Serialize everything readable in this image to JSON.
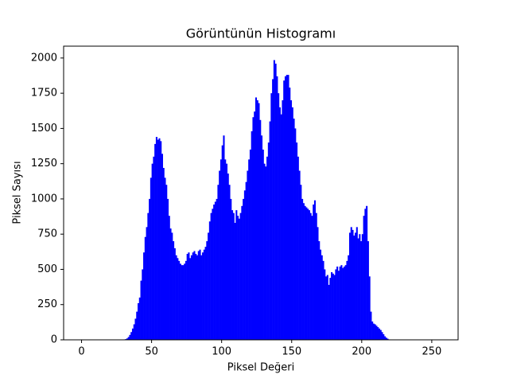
{
  "chart_data": {
    "type": "histogram",
    "title": "Görüntünün Histogramı",
    "x_label": "Piksel Değeri",
    "y_label": "Piksel Sayısı",
    "color": "#0000ff",
    "bins": [
      0,
      1,
      2,
      3,
      4,
      5,
      6,
      7,
      8,
      9,
      10,
      11,
      12,
      13,
      14,
      15,
      16,
      17,
      18,
      19,
      20,
      21,
      22,
      23,
      24,
      25,
      26,
      27,
      28,
      29,
      30,
      31,
      32,
      33,
      34,
      35,
      36,
      37,
      38,
      39,
      40,
      41,
      42,
      43,
      44,
      45,
      46,
      47,
      48,
      49,
      50,
      51,
      52,
      53,
      54,
      55,
      56,
      57,
      58,
      59,
      60,
      61,
      62,
      63,
      64,
      65,
      66,
      67,
      68,
      69,
      70,
      71,
      72,
      73,
      74,
      75,
      76,
      77,
      78,
      79,
      80,
      81,
      82,
      83,
      84,
      85,
      86,
      87,
      88,
      89,
      90,
      91,
      92,
      93,
      94,
      95,
      96,
      97,
      98,
      99,
      100,
      101,
      102,
      103,
      104,
      105,
      106,
      107,
      108,
      109,
      110,
      111,
      112,
      113,
      114,
      115,
      116,
      117,
      118,
      119,
      120,
      121,
      122,
      123,
      124,
      125,
      126,
      127,
      128,
      129,
      130,
      131,
      132,
      133,
      134,
      135,
      136,
      137,
      138,
      139,
      140,
      141,
      142,
      143,
      144,
      145,
      146,
      147,
      148,
      149,
      150,
      151,
      152,
      153,
      154,
      155,
      156,
      157,
      158,
      159,
      160,
      161,
      162,
      163,
      164,
      165,
      166,
      167,
      168,
      169,
      170,
      171,
      172,
      173,
      174,
      175,
      176,
      177,
      178,
      179,
      180,
      181,
      182,
      183,
      184,
      185,
      186,
      187,
      188,
      189,
      190,
      191,
      192,
      193,
      194,
      195,
      196,
      197,
      198,
      199,
      200,
      201,
      202,
      203,
      204,
      205,
      206,
      207,
      208,
      209,
      210,
      211,
      212,
      213,
      214,
      215,
      216,
      217,
      218,
      219,
      220,
      221,
      222,
      223,
      224,
      225,
      226,
      227,
      228,
      229,
      230,
      231,
      232,
      233,
      234,
      235,
      236,
      237,
      238,
      239,
      240,
      241,
      242,
      243,
      244,
      245,
      246,
      247,
      248,
      249,
      250,
      251,
      252,
      253,
      254,
      255,
      256
    ],
    "values": [
      0,
      0,
      0,
      0,
      0,
      0,
      0,
      0,
      0,
      0,
      0,
      0,
      0,
      0,
      0,
      0,
      0,
      0,
      0,
      0,
      0,
      0,
      0,
      0,
      0,
      0,
      0,
      0,
      0,
      0,
      3,
      5,
      10,
      20,
      35,
      55,
      80,
      110,
      150,
      200,
      260,
      300,
      420,
      500,
      620,
      730,
      800,
      900,
      1000,
      1150,
      1250,
      1300,
      1390,
      1440,
      1420,
      1430,
      1410,
      1320,
      1220,
      1150,
      1100,
      1000,
      880,
      790,
      760,
      700,
      650,
      600,
      580,
      560,
      540,
      530,
      530,
      540,
      560,
      610,
      620,
      580,
      600,
      620,
      630,
      610,
      600,
      630,
      640,
      600,
      620,
      640,
      660,
      700,
      760,
      840,
      900,
      930,
      960,
      980,
      1000,
      1100,
      1200,
      1280,
      1380,
      1450,
      1280,
      1250,
      1180,
      1100,
      1000,
      920,
      900,
      830,
      920,
      880,
      860,
      900,
      950,
      1000,
      1060,
      1120,
      1200,
      1280,
      1350,
      1480,
      1580,
      1620,
      1720,
      1700,
      1680,
      1560,
      1450,
      1350,
      1250,
      1230,
      1300,
      1400,
      1550,
      1750,
      1850,
      1985,
      1960,
      1870,
      1750,
      1650,
      1600,
      1700,
      1840,
      1870,
      1880,
      1880,
      1790,
      1700,
      1650,
      1570,
      1500,
      1400,
      1300,
      1200,
      1100,
      1000,
      970,
      950,
      940,
      930,
      920,
      900,
      880,
      960,
      990,
      900,
      800,
      700,
      640,
      600,
      560,
      500,
      450,
      460,
      390,
      440,
      480,
      470,
      460,
      500,
      520,
      490,
      520,
      530,
      510,
      520,
      530,
      560,
      600,
      760,
      800,
      780,
      740,
      760,
      800,
      720,
      750,
      700,
      750,
      880,
      930,
      950,
      700,
      450,
      200,
      130,
      115,
      110,
      100,
      90,
      80,
      70,
      55,
      40,
      25,
      15,
      8,
      3,
      0,
      0,
      0,
      0,
      0,
      0,
      0,
      0,
      0,
      0,
      0,
      0,
      0,
      0,
      0,
      0,
      0,
      0,
      0,
      0,
      0,
      0,
      0,
      0,
      0,
      0,
      0,
      0,
      0,
      0,
      0,
      0,
      0,
      0,
      0,
      0
    ],
    "xlim": [
      -12.8,
      268.8
    ],
    "xticks": [
      0,
      50,
      100,
      150,
      200,
      250
    ],
    "ylim": [
      0,
      2084
    ],
    "yticks": [
      0,
      250,
      500,
      750,
      1000,
      1250,
      1500,
      1750,
      2000
    ]
  }
}
